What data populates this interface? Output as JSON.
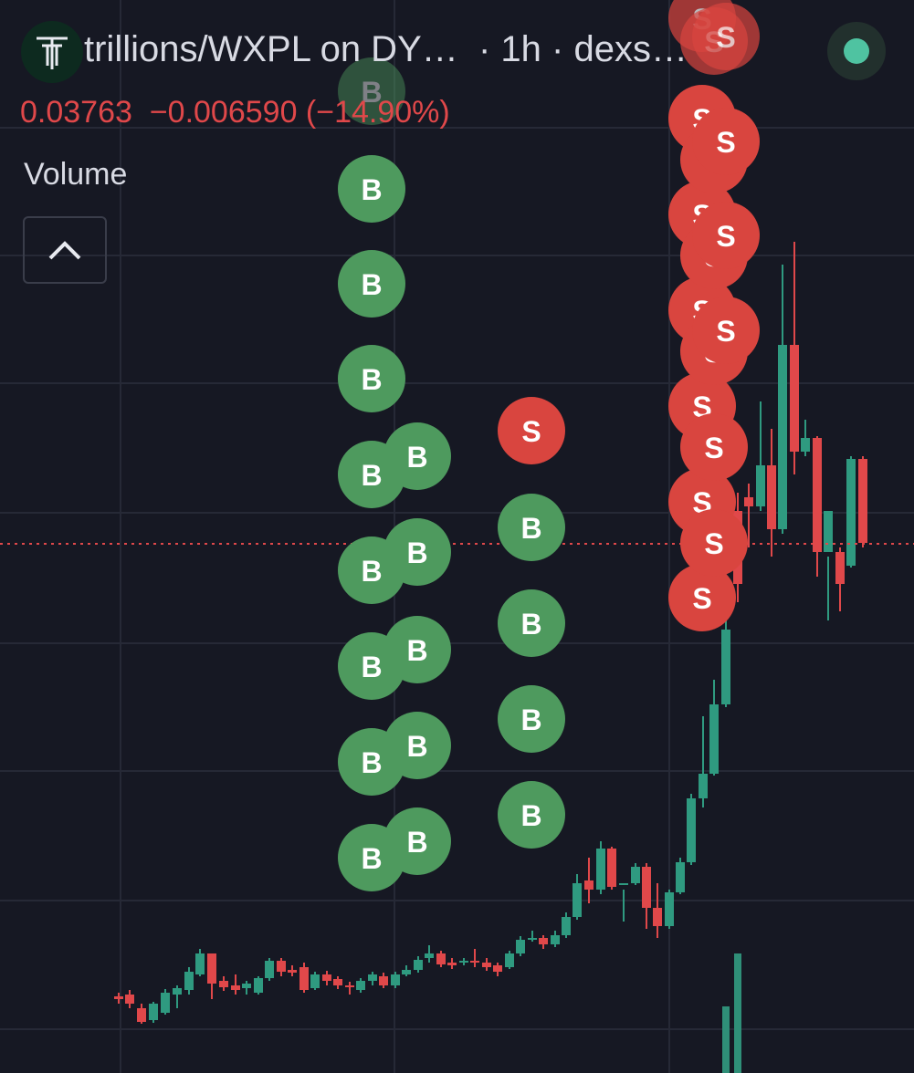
{
  "header": {
    "symbol": "trillions/WXPL on DY…",
    "interval": "· 1h · dexs…",
    "price": "0.03763",
    "change": "−0.006590 (−14.90%)"
  },
  "indicator": {
    "label": "Volume"
  },
  "markers": [
    {
      "label": "B"
    },
    {
      "label": "B"
    },
    {
      "label": "B"
    },
    {
      "label": "B"
    },
    {
      "label": "B"
    },
    {
      "label": "B"
    },
    {
      "label": "B"
    },
    {
      "label": "B"
    },
    {
      "label": "B"
    },
    {
      "label": "B"
    },
    {
      "label": "B"
    },
    {
      "label": "B"
    },
    {
      "label": "B"
    },
    {
      "label": "B"
    },
    {
      "label": "S"
    },
    {
      "label": "B"
    },
    {
      "label": "B"
    },
    {
      "label": "B"
    },
    {
      "label": "B"
    },
    {
      "label": "S"
    },
    {
      "label": "S"
    },
    {
      "label": "S"
    },
    {
      "label": "S"
    },
    {
      "label": "S"
    },
    {
      "label": "S"
    },
    {
      "label": "S"
    },
    {
      "label": "S"
    },
    {
      "label": "S"
    },
    {
      "label": "S"
    },
    {
      "label": "S"
    },
    {
      "label": "S"
    },
    {
      "label": "S"
    },
    {
      "label": "S"
    },
    {
      "label": "S"
    },
    {
      "label": "S"
    },
    {
      "label": "S"
    }
  ]
}
